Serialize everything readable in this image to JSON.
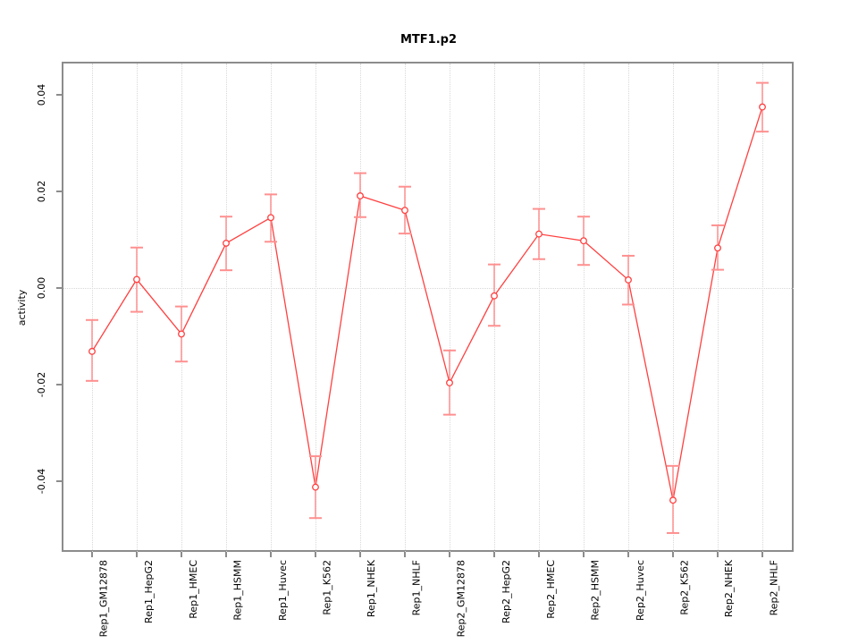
{
  "chart_data": {
    "type": "line",
    "title": "MTF1.p2",
    "xlabel": "",
    "ylabel": "activity",
    "categories": [
      "Rep1_GM12878",
      "Rep1_HepG2",
      "Rep1_HMEC",
      "Rep1_HSMM",
      "Rep1_Huvec",
      "Rep1_K562",
      "Rep1_NHEK",
      "Rep1_NHLF",
      "Rep2_GM12878",
      "Rep2_HepG2",
      "Rep2_HMEC",
      "Rep2_HSMM",
      "Rep2_Huvec",
      "Rep2_K562",
      "Rep2_NHEK",
      "Rep2_NHLF"
    ],
    "series": [
      {
        "name": "MTF1.p2 activity",
        "values": [
          -0.0131,
          0.0018,
          -0.0095,
          0.0093,
          0.0146,
          -0.0412,
          0.0191,
          0.0161,
          -0.0196,
          -0.0016,
          0.0112,
          0.0098,
          0.0017,
          -0.0439,
          0.0083,
          0.0375
        ],
        "ci_lower": [
          -0.0192,
          -0.0049,
          -0.0152,
          0.0037,
          0.0096,
          -0.0476,
          0.0147,
          0.0113,
          -0.0262,
          -0.0078,
          0.006,
          0.0048,
          -0.0034,
          -0.0507,
          0.0038,
          0.0324
        ],
        "ci_upper": [
          -0.0066,
          0.0084,
          -0.0038,
          0.0148,
          0.0194,
          -0.0348,
          0.0238,
          0.021,
          -0.0129,
          0.0049,
          0.0164,
          0.0148,
          0.0067,
          -0.0368,
          0.013,
          0.0425
        ]
      }
    ],
    "ylim": [
      -0.0546,
      0.0465
    ],
    "yticks": [
      -0.04,
      -0.02,
      0,
      0.02,
      0.04
    ],
    "ytick_labels": [
      "-0.04",
      "-0.02",
      "0.00",
      "0.02",
      "0.04"
    ],
    "grid": {
      "vertical": "dotted line at every category tick",
      "horizontal": "dotted line at y = 0 only"
    },
    "legend": "none",
    "marker": "open-circle",
    "error_bars": "vertical whiskers with horizontal caps",
    "colors": {
      "line": "#ff4040",
      "marker_stroke": "#ff4040",
      "marker_fill": "#ffffff",
      "errorbar": "#ff9090",
      "frame": "#8c8c8c",
      "grid": "#d8d8d8",
      "text": "#000000",
      "background": "#ffffff"
    }
  }
}
